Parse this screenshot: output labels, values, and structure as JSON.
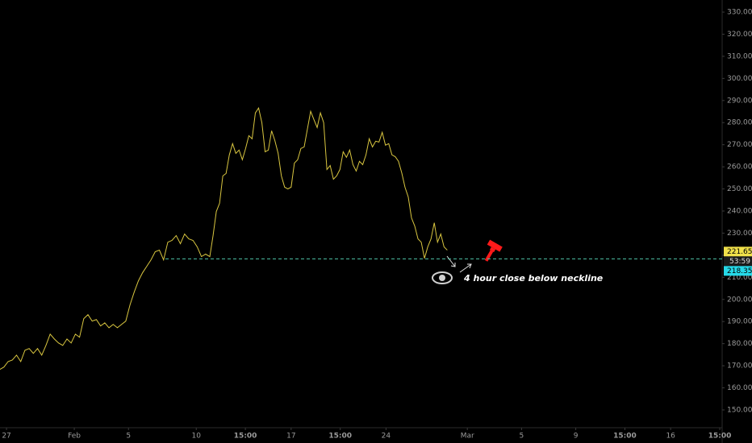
{
  "chart_data": {
    "type": "line",
    "color": "#d9c640",
    "grid": false,
    "x": [
      -0.5,
      -0.19,
      0.12,
      0.43,
      0.74,
      1.05,
      1.36,
      1.67,
      1.98,
      2.29,
      2.6,
      2.91,
      3.22,
      3.53,
      3.84,
      4.15,
      4.46,
      4.77,
      5.08,
      5.39,
      5.7,
      6.01,
      6.32,
      6.63,
      6.94,
      7.25,
      7.56,
      7.87,
      8.18,
      8.49,
      8.8,
      9.11,
      9.42,
      9.73,
      10.04,
      10.35,
      10.66,
      10.97,
      11.28,
      11.59,
      11.9,
      12.21,
      12.52,
      12.83,
      13.14,
      13.45,
      13.76,
      14.07,
      14.38,
      14.69,
      15.0,
      15.24,
      15.48,
      15.72,
      15.96,
      16.2,
      16.44,
      16.68,
      16.92,
      17.16,
      17.4,
      17.64,
      17.88,
      18.12,
      18.36,
      18.6,
      18.84,
      19.08,
      19.32,
      19.56,
      19.8,
      20.04,
      20.28,
      20.52,
      20.76,
      21.0,
      21.24,
      21.48,
      21.72,
      21.96,
      22.2,
      22.44,
      22.68,
      22.92,
      23.16,
      23.4,
      23.64,
      23.88,
      24.12,
      24.36,
      24.6,
      24.84,
      25.08,
      25.32,
      25.56,
      25.8,
      26.04,
      26.28,
      26.52,
      26.76,
      27.0,
      27.24,
      27.48,
      27.72,
      27.96,
      28.2,
      28.44,
      28.68,
      28.92,
      29.16,
      29.4,
      29.64,
      29.88,
      30.12,
      30.36,
      30.6,
      30.84,
      31.08,
      31.32,
      31.56,
      31.8,
      32.04,
      32.28,
      32.52
    ],
    "values": [
      168.3,
      169.4,
      171.9,
      172.6,
      174.8,
      171.9,
      177.0,
      177.8,
      175.6,
      177.8,
      174.8,
      179.2,
      184.3,
      182.1,
      180.3,
      179.2,
      182.1,
      180.3,
      184.3,
      182.9,
      191.3,
      193.1,
      190.2,
      190.9,
      188.0,
      189.4,
      187.2,
      188.7,
      187.2,
      188.7,
      190.2,
      197.5,
      203.3,
      208.4,
      212.1,
      215.0,
      217.9,
      221.6,
      222.3,
      217.9,
      225.9,
      226.7,
      228.9,
      225.2,
      229.6,
      227.4,
      226.7,
      223.8,
      219.4,
      220.5,
      219.4,
      228.9,
      239.8,
      243.5,
      255.9,
      257.0,
      265.4,
      270.5,
      266.1,
      267.6,
      263.2,
      268.3,
      274.1,
      272.7,
      284.4,
      286.6,
      280.0,
      266.8,
      267.6,
      276.3,
      271.9,
      266.1,
      255.9,
      250.8,
      250.0,
      250.8,
      261.7,
      263.2,
      268.3,
      269.0,
      277.1,
      285.1,
      281.4,
      277.8,
      284.4,
      280.0,
      258.8,
      260.6,
      254.4,
      255.9,
      258.8,
      266.8,
      264.3,
      267.6,
      261.0,
      258.1,
      262.5,
      261.0,
      265.4,
      272.7,
      269.0,
      271.6,
      271.2,
      275.6,
      269.8,
      270.5,
      265.4,
      264.6,
      262.5,
      257.3,
      250.8,
      246.4,
      236.9,
      233.2,
      227.4,
      225.9,
      218.6,
      223.8,
      227.4,
      234.7,
      225.9,
      229.6,
      223.8,
      222.3
    ],
    "xlim": [
      -0.48,
      52.8
    ],
    "ylim": [
      141.97,
      335.48
    ],
    "xticks": [
      {
        "value": 0,
        "label": "27"
      },
      {
        "value": 5,
        "label": "Feb"
      },
      {
        "value": 9,
        "label": "5"
      },
      {
        "value": 14,
        "label": "10"
      },
      {
        "value": 17.625,
        "label": "15:00"
      },
      {
        "value": 21,
        "label": "17"
      },
      {
        "value": 24.625,
        "label": "15:00"
      },
      {
        "value": 28,
        "label": "24"
      },
      {
        "value": 34,
        "label": "Mar"
      },
      {
        "value": 38,
        "label": "5"
      },
      {
        "value": 42,
        "label": "9"
      },
      {
        "value": 45.625,
        "label": "15:00"
      },
      {
        "value": 49,
        "label": "16"
      },
      {
        "value": 52.625,
        "label": "15:00"
      }
    ],
    "yticks": [
      {
        "value": 150,
        "label": "150.00"
      },
      {
        "value": 160,
        "label": "160.00"
      },
      {
        "value": 170,
        "label": "170.00"
      },
      {
        "value": 180,
        "label": "180.00"
      },
      {
        "value": 190,
        "label": "190.00"
      },
      {
        "value": 200,
        "label": "200.00"
      },
      {
        "value": 210,
        "label": "210.00"
      },
      {
        "value": 220,
        "label": "220.00"
      },
      {
        "value": 230,
        "label": "230.00"
      },
      {
        "value": 240,
        "label": "240.00"
      },
      {
        "value": 250,
        "label": "250.00"
      },
      {
        "value": 260,
        "label": "260.00"
      },
      {
        "value": 270,
        "label": "270.00"
      },
      {
        "value": 280,
        "label": "280.00"
      },
      {
        "value": 290,
        "label": "290.00"
      },
      {
        "value": 300,
        "label": "300.00"
      },
      {
        "value": 310,
        "label": "310.00"
      },
      {
        "value": 320,
        "label": "320.00"
      },
      {
        "value": 330,
        "label": "330.00"
      }
    ],
    "last_price": 221.65,
    "countdown": "53:59",
    "neckline": 218.35,
    "annotation": "4 hour close below neckline"
  }
}
